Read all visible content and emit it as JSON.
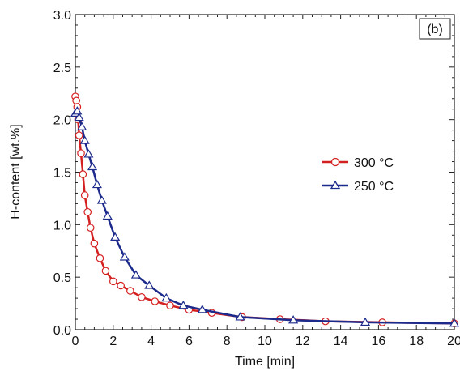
{
  "chart_data": {
    "type": "line",
    "panel_label": "(b)",
    "xlabel": "Time [min]",
    "ylabel": "H-content [wt.%]",
    "xlim": [
      0,
      20
    ],
    "ylim": [
      0,
      3.0
    ],
    "x_ticks": [
      0,
      2,
      4,
      6,
      8,
      10,
      12,
      14,
      16,
      18,
      20
    ],
    "x_tick_labels": [
      "0",
      "2",
      "4",
      "6",
      "8",
      "10",
      "12",
      "14",
      "16",
      "18",
      "20"
    ],
    "y_ticks": [
      0,
      0.5,
      1.0,
      1.5,
      2.0,
      2.5,
      3.0
    ],
    "y_tick_labels": [
      "0.0",
      "0.5",
      "1.0",
      "1.5",
      "2.0",
      "2.5",
      "3.0"
    ],
    "grid": false,
    "legend_position": "right-middle",
    "series": [
      {
        "name": "300 °C",
        "color": "#d42020",
        "marker": "circle",
        "x": [
          0,
          0.05,
          0.1,
          0.15,
          0.2,
          0.3,
          0.4,
          0.5,
          0.65,
          0.8,
          1.0,
          1.3,
          1.6,
          2.0,
          2.4,
          2.9,
          3.5,
          4.2,
          5.0,
          6.0,
          7.2,
          8.8,
          10.8,
          13.2,
          16.2,
          20.0
        ],
        "y": [
          2.22,
          2.18,
          2.12,
          2.0,
          1.85,
          1.68,
          1.48,
          1.28,
          1.12,
          0.97,
          0.82,
          0.68,
          0.56,
          0.46,
          0.42,
          0.37,
          0.31,
          0.27,
          0.23,
          0.19,
          0.16,
          0.12,
          0.1,
          0.08,
          0.07,
          0.06
        ]
      },
      {
        "name": "250 °C",
        "color": "#1c2a8c",
        "marker": "triangle",
        "x": [
          0,
          0.1,
          0.2,
          0.35,
          0.5,
          0.7,
          0.9,
          1.15,
          1.4,
          1.7,
          2.1,
          2.6,
          3.2,
          3.9,
          4.8,
          5.7,
          6.7,
          8.7,
          11.5,
          15.3,
          20.0
        ],
        "y": [
          2.06,
          2.08,
          2.02,
          1.93,
          1.8,
          1.67,
          1.55,
          1.38,
          1.23,
          1.08,
          0.88,
          0.69,
          0.52,
          0.42,
          0.3,
          0.23,
          0.19,
          0.12,
          0.09,
          0.07,
          0.06
        ]
      }
    ]
  }
}
